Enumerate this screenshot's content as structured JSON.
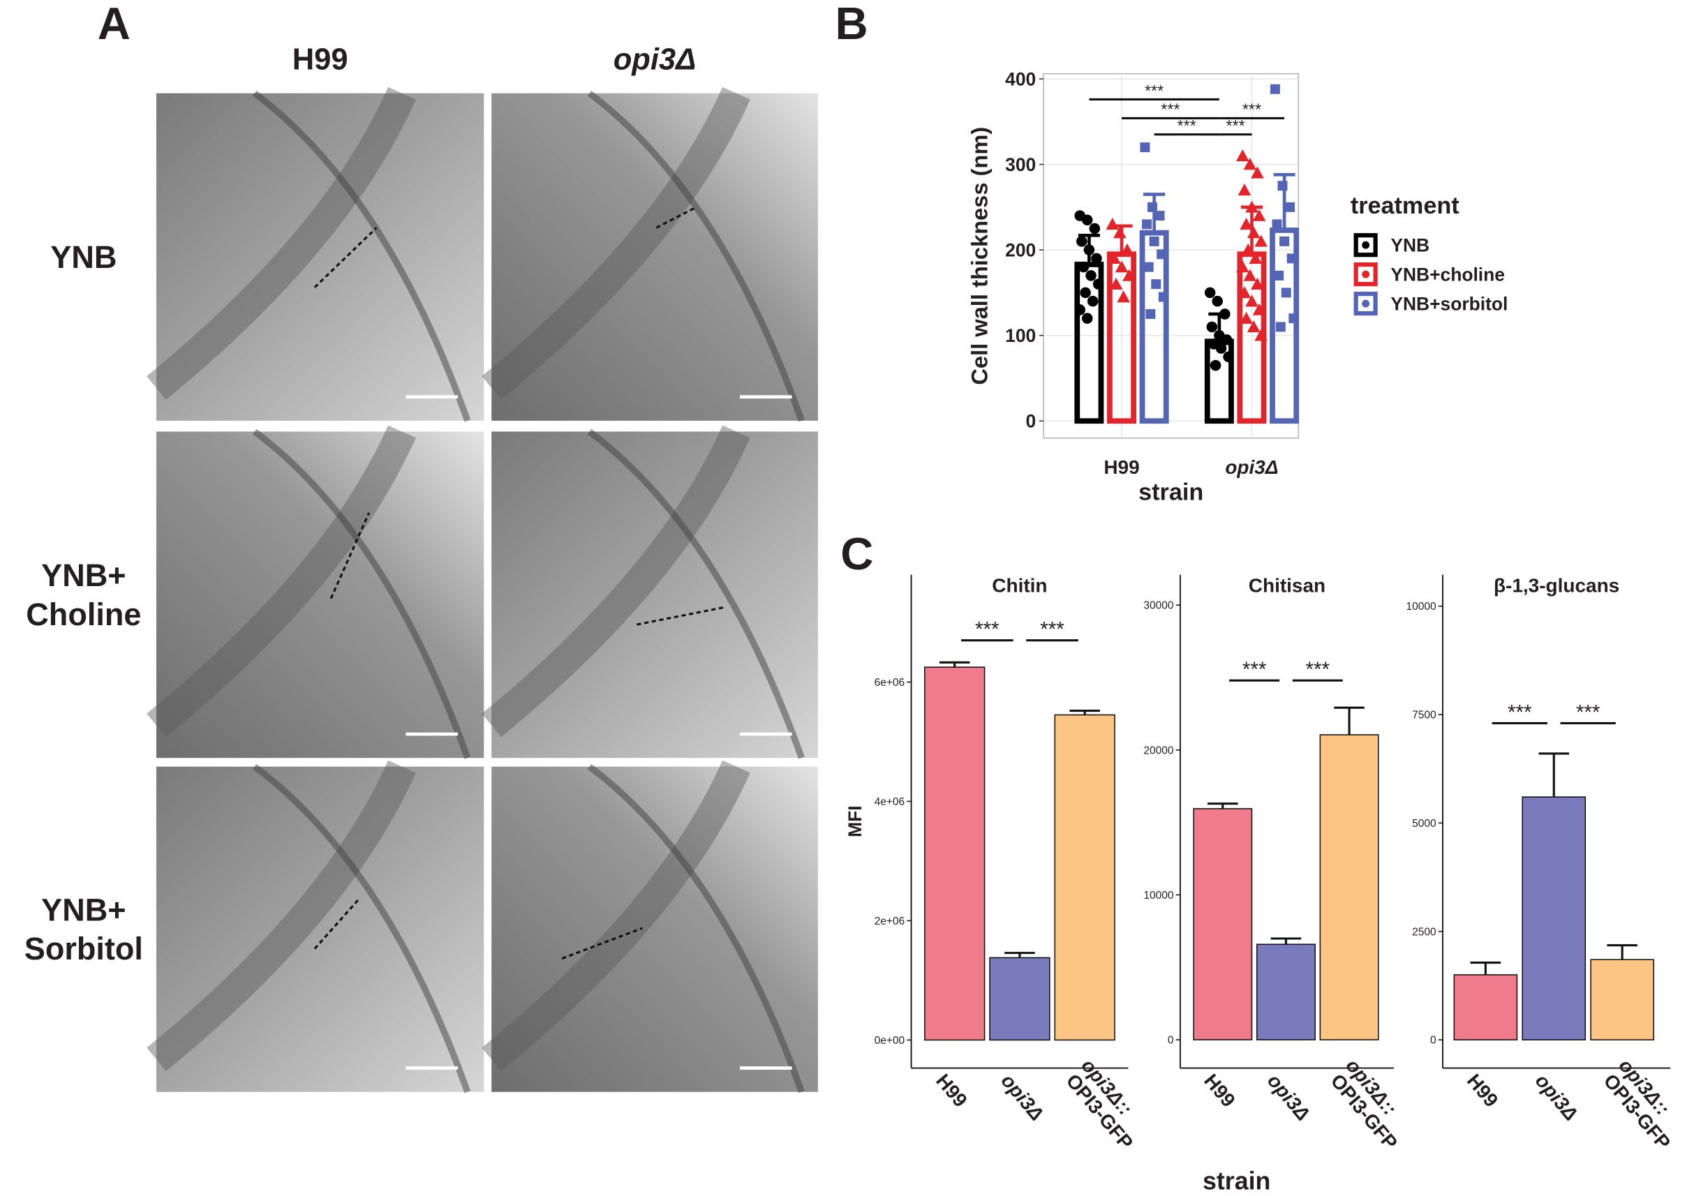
{
  "panel_a": {
    "label": "A",
    "columns": [
      "H99",
      "opi3Δ"
    ],
    "rows": [
      [
        "YNB"
      ],
      [
        "YNB+",
        "Choline"
      ],
      [
        "YNB+",
        "Sorbitol"
      ]
    ]
  },
  "chart_data": [
    {
      "type": "bar",
      "panel": "B",
      "ylabel": "Cell wall thickness (nm)",
      "xlabel": "strain",
      "categories": [
        "H99",
        "opi3Δ"
      ],
      "ylim": [
        -20,
        406
      ],
      "yticks": [
        0,
        100,
        200,
        300,
        400
      ],
      "grid": true,
      "legend_title": "treatment",
      "legend": "right",
      "series": [
        {
          "name": "YNB",
          "color": "#000000",
          "marker": "circle",
          "values": [
            183,
            93
          ],
          "errors": [
            34,
            32
          ],
          "points": [
            [
              240,
              235,
              225,
              210,
              200,
              190,
              180,
              170,
              160,
              150,
              140,
              130,
              120
            ],
            [
              150,
              140,
              125,
              110,
              100,
              95,
              90,
              85,
              75,
              65
            ]
          ]
        },
        {
          "name": "YNB+choline",
          "color": "#e3242b",
          "marker": "triangle",
          "values": [
            195,
            195
          ],
          "errors": [
            33,
            55
          ],
          "points": [
            [
              230,
              220,
              200,
              190,
              180,
              170,
              160,
              145
            ],
            [
              310,
              300,
              290,
              270,
              250,
              240,
              230,
              220,
              210,
              200,
              190,
              180,
              170,
              160,
              150,
              140,
              130,
              120,
              110,
              100
            ]
          ]
        },
        {
          "name": "YNB+sorbitol",
          "color": "#5565b5",
          "marker": "square",
          "values": [
            220,
            223
          ],
          "errors": [
            45,
            65
          ],
          "points": [
            [
              320,
              250,
              240,
              230,
              210,
              195,
              180,
              160,
              145,
              125
            ],
            [
              388,
              275,
              250,
              230,
              210,
              190,
              170,
              150,
              120,
              110
            ]
          ]
        }
      ],
      "significance": [
        {
          "label": "***",
          "from": [
            0,
            0
          ],
          "to": [
            0,
            1
          ],
          "y": 376
        },
        {
          "label": "***",
          "from": [
            1,
            0
          ],
          "to": [
            0,
            1
          ],
          "y": 354
        },
        {
          "label": "***",
          "from": [
            2,
            0
          ],
          "to": [
            0,
            1
          ],
          "y": 335
        },
        {
          "label": "***",
          "from": [
            0,
            1
          ],
          "to": [
            2,
            1
          ],
          "y": 354
        },
        {
          "label": "***",
          "from": [
            0,
            1
          ],
          "to": [
            1,
            1
          ],
          "y": 335
        }
      ]
    },
    {
      "type": "bar",
      "panel": "C",
      "title": "Chitin",
      "ylabel": "MFI",
      "categories": [
        [
          "H99"
        ],
        [
          "opi3Δ"
        ],
        [
          "opi3Δ::",
          "OPI3-GFP"
        ]
      ],
      "values": [
        6250000,
        1380000,
        5450000
      ],
      "errors": [
        80000,
        80000,
        70000
      ],
      "colors": [
        "#f07b8a",
        "#7a7bbd",
        "#fdc584"
      ],
      "ylim": [
        -470000,
        7800000
      ],
      "yticks": [
        {
          "value": 0,
          "label": "0e+00"
        },
        {
          "value": 2000000,
          "label": "2e+06"
        },
        {
          "value": 4000000,
          "label": "4e+06"
        },
        {
          "value": 6000000,
          "label": "6e+06"
        }
      ],
      "significance": [
        {
          "label": "***",
          "from": 0,
          "to": 1,
          "y": 6700000
        },
        {
          "label": "***",
          "from": 1,
          "to": 2,
          "y": 6700000
        }
      ]
    },
    {
      "type": "bar",
      "title": "Chitisan",
      "xlabel": "strain",
      "categories": [
        [
          "H99"
        ],
        [
          "opi3Δ"
        ],
        [
          "opi3Δ::",
          "OPI3-GFP"
        ]
      ],
      "values": [
        15950,
        6590,
        21050
      ],
      "errors": [
        350,
        400,
        1870
      ],
      "colors": [
        "#f07b8a",
        "#7a7bbd",
        "#fdc584"
      ],
      "ylim": [
        -1950,
        32100
      ],
      "yticks": [
        0,
        10000,
        20000,
        30000
      ],
      "significance": [
        {
          "label": "***",
          "from": 0,
          "to": 1,
          "y": 24800
        },
        {
          "label": "***",
          "from": 1,
          "to": 2,
          "y": 24800
        }
      ]
    },
    {
      "type": "bar",
      "title": "β-1,3-glucans",
      "categories": [
        [
          "H99"
        ],
        [
          "opi3Δ"
        ],
        [
          "opi3Δ::",
          "OPI3-GFP"
        ]
      ],
      "values": [
        1500,
        5600,
        1850
      ],
      "errors": [
        280,
        1000,
        330
      ],
      "colors": [
        "#f07b8a",
        "#7a7bbd",
        "#fdc584"
      ],
      "ylim": [
        -650,
        10725
      ],
      "yticks": [
        0,
        2500,
        5000,
        7500,
        10000
      ],
      "significance": [
        {
          "label": "***",
          "from": 0,
          "to": 1,
          "y": 7300
        },
        {
          "label": "***",
          "from": 1,
          "to": 2,
          "y": 7300
        }
      ]
    }
  ]
}
